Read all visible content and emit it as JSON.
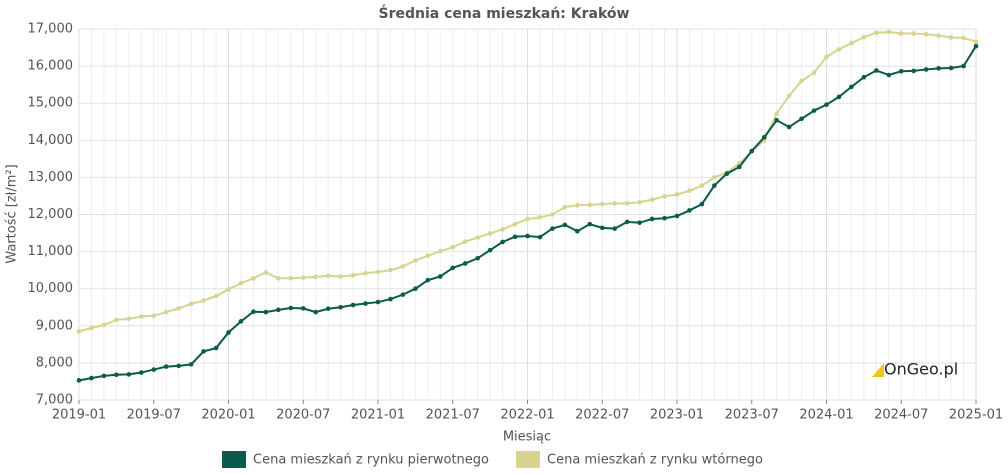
{
  "chart_data": {
    "type": "line",
    "title": "Średnia cena mieszkań: Kraków",
    "x_label": "Miesiąc",
    "y_label": "Wartość [zł/m²]",
    "watermark": "OnGeo.pl",
    "categories": [
      "2019-01",
      null,
      null,
      null,
      null,
      null,
      "2019-07",
      null,
      null,
      null,
      null,
      null,
      "2020-01",
      null,
      null,
      null,
      null,
      null,
      "2020-07",
      null,
      null,
      null,
      null,
      null,
      "2021-01",
      null,
      null,
      null,
      null,
      null,
      "2021-07",
      null,
      null,
      null,
      null,
      null,
      "2022-01",
      null,
      null,
      null,
      null,
      null,
      "2022-07",
      null,
      null,
      null,
      null,
      null,
      "2023-01",
      null,
      null,
      null,
      null,
      null,
      "2023-07",
      null,
      null,
      null,
      null,
      null,
      "2024-01",
      null,
      null,
      null,
      null,
      null,
      "2024-07",
      null,
      null,
      null,
      null,
      null,
      "2025-01"
    ],
    "series": [
      {
        "name": "Cena mieszkań z rynku pierwotnego",
        "color": "#0b5a4b",
        "values": [
          7530,
          7590,
          7650,
          7680,
          7690,
          7740,
          7820,
          7900,
          7920,
          7960,
          8310,
          8400,
          8820,
          9120,
          9380,
          9370,
          9430,
          9480,
          9470,
          9370,
          9460,
          9500,
          9560,
          9600,
          9640,
          9720,
          9840,
          10000,
          10230,
          10330,
          10560,
          10680,
          10820,
          11040,
          11260,
          11400,
          11420,
          11390,
          11620,
          11720,
          11550,
          11740,
          11640,
          11620,
          11800,
          11780,
          11880,
          11900,
          11960,
          12110,
          12280,
          12780,
          13100,
          13280,
          13710,
          14080,
          14540,
          14360,
          14580,
          14800,
          14960,
          15170,
          15440,
          15700,
          15880,
          15760,
          15860,
          15870,
          15910,
          15940,
          15950,
          16000,
          16540
        ]
      },
      {
        "name": "Cena mieszkań z rynku wtórnego",
        "color": "#d6d48f",
        "values": [
          8850,
          8940,
          9020,
          9160,
          9190,
          9250,
          9270,
          9370,
          9470,
          9590,
          9680,
          9800,
          9980,
          10150,
          10280,
          10440,
          10280,
          10280,
          10300,
          10320,
          10350,
          10330,
          10360,
          10420,
          10450,
          10500,
          10600,
          10760,
          10890,
          11010,
          11120,
          11270,
          11380,
          11490,
          11600,
          11740,
          11880,
          11920,
          12000,
          12200,
          12250,
          12260,
          12280,
          12300,
          12300,
          12330,
          12400,
          12490,
          12540,
          12640,
          12780,
          13000,
          13130,
          13380,
          13700,
          14000,
          14720,
          15200,
          15600,
          15820,
          16250,
          16450,
          16620,
          16780,
          16900,
          16920,
          16880,
          16880,
          16860,
          16820,
          16770,
          16760,
          16660
        ]
      }
    ],
    "ylim": [
      7000,
      17000
    ],
    "yticks": [
      {
        "value": 7000,
        "label": "7,000"
      },
      {
        "value": 8000,
        "label": "8,000"
      },
      {
        "value": 9000,
        "label": "9,000"
      },
      {
        "value": 10000,
        "label": "10,000"
      },
      {
        "value": 11000,
        "label": "11,000"
      },
      {
        "value": 12000,
        "label": "12,000"
      },
      {
        "value": 13000,
        "label": "13,000"
      },
      {
        "value": 14000,
        "label": "14,000"
      },
      {
        "value": 15000,
        "label": "15,000"
      },
      {
        "value": 16000,
        "label": "16,000"
      },
      {
        "value": 17000,
        "label": "17,000"
      }
    ],
    "grid": true,
    "legend": "bottom"
  }
}
